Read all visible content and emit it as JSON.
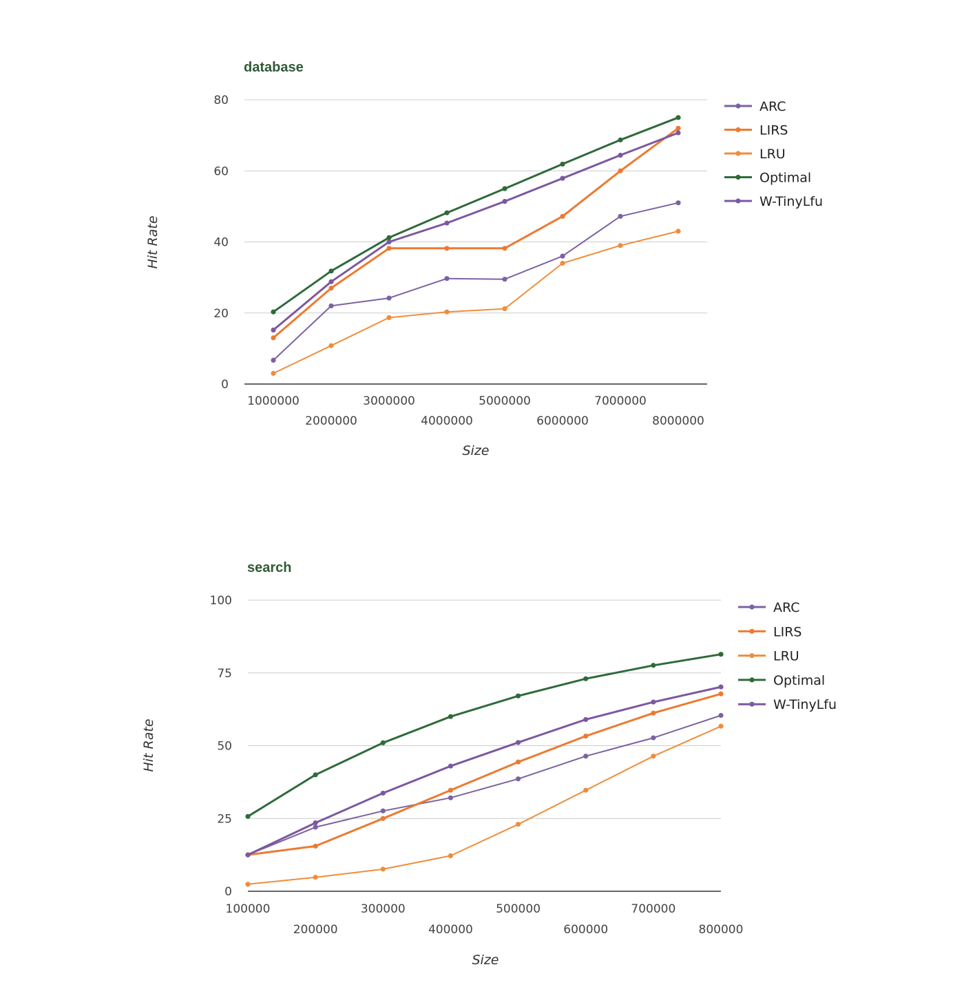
{
  "chart_data": [
    {
      "type": "line",
      "title": "database",
      "xlabel": "Size",
      "ylabel": "Hit Rate",
      "ylim": [
        0,
        80
      ],
      "y_ticks": [
        "0",
        "20",
        "40",
        "60",
        "80"
      ],
      "x": [
        1000000,
        2000000,
        3000000,
        4000000,
        5000000,
        6000000,
        7000000,
        8000000
      ],
      "x_tick_labels": [
        "1000000",
        "2000000",
        "3000000",
        "4000000",
        "5000000",
        "6000000",
        "7000000",
        "8000000"
      ],
      "grid": true,
      "legend_position": "right",
      "series": [
        {
          "name": "ARC",
          "color": "#7b62a3",
          "width": 2,
          "values": [
            6.7,
            22.0,
            24.2,
            29.7,
            29.5,
            36.0,
            47.2,
            51.0
          ]
        },
        {
          "name": "LIRS",
          "color": "#ec7a2f",
          "width": 3,
          "values": [
            13.0,
            27.0,
            38.2,
            38.2,
            38.2,
            47.2,
            60.0,
            72.0
          ]
        },
        {
          "name": "LRU",
          "color": "#f08d3a",
          "width": 2,
          "values": [
            3.0,
            10.8,
            18.7,
            20.3,
            21.2,
            34.0,
            39.0,
            43.0
          ]
        },
        {
          "name": "Optimal",
          "color": "#2f6a3a",
          "width": 3,
          "values": [
            20.3,
            31.8,
            41.2,
            48.2,
            55.0,
            61.9,
            68.7,
            75.0
          ]
        },
        {
          "name": "W-TinyLfu",
          "color": "#7b58a0",
          "width": 3,
          "values": [
            15.2,
            28.8,
            40.0,
            45.3,
            51.4,
            57.9,
            64.4,
            70.7
          ]
        }
      ]
    },
    {
      "type": "line",
      "title": "search",
      "xlabel": "Size",
      "ylabel": "Hit Rate",
      "ylim": [
        0,
        100
      ],
      "y_ticks": [
        "0",
        "25",
        "50",
        "75",
        "100"
      ],
      "x": [
        100000,
        200000,
        300000,
        400000,
        500000,
        600000,
        700000,
        800000
      ],
      "x_tick_labels": [
        "100000",
        "200000",
        "300000",
        "400000",
        "500000",
        "600000",
        "700000",
        "800000"
      ],
      "grid": true,
      "legend_position": "right",
      "series": [
        {
          "name": "ARC",
          "color": "#7b62a3",
          "width": 2,
          "values": [
            12.5,
            22.0,
            27.6,
            32.1,
            38.6,
            46.4,
            52.7,
            60.4
          ]
        },
        {
          "name": "LIRS",
          "color": "#ec7a2f",
          "width": 3,
          "values": [
            12.5,
            15.5,
            25.0,
            34.7,
            44.4,
            53.3,
            61.2,
            67.8
          ]
        },
        {
          "name": "LRU",
          "color": "#f08d3a",
          "width": 2,
          "values": [
            2.4,
            4.8,
            7.6,
            12.2,
            23.0,
            34.7,
            46.4,
            56.7
          ]
        },
        {
          "name": "Optimal",
          "color": "#2f6a3a",
          "width": 3,
          "values": [
            25.7,
            40.0,
            51.0,
            60.0,
            67.1,
            73.0,
            77.6,
            81.4
          ]
        },
        {
          "name": "W-TinyLfu",
          "color": "#7b58a0",
          "width": 3,
          "values": [
            12.5,
            23.5,
            33.7,
            43.0,
            51.1,
            59.0,
            65.0,
            70.2
          ]
        }
      ]
    }
  ]
}
